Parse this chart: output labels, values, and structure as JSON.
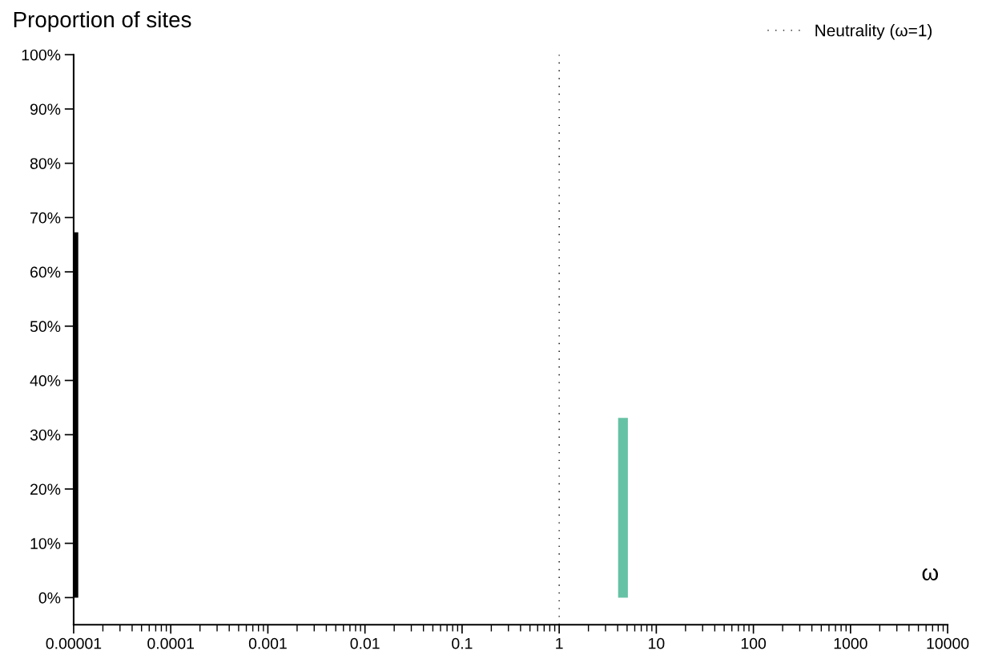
{
  "chart_data": {
    "type": "bar",
    "ylabel": "Proportion of sites",
    "xlabel": "ω",
    "x": [
      1e-05,
      4.57
    ],
    "colors": [
      "#000000",
      "#66c2a5"
    ],
    "values": [
      67.3,
      33.1
    ],
    "log": "x",
    "xlim": [
      1e-05,
      10000
    ],
    "xticks": [
      {
        "value": 1e-05,
        "label": "0.00001"
      },
      {
        "value": 0.0001,
        "label": "0.0001"
      },
      {
        "value": 0.001,
        "label": "0.001"
      },
      {
        "value": 0.01,
        "label": "0.01"
      },
      {
        "value": 0.1,
        "label": "0.1"
      },
      1,
      10,
      100,
      1000,
      10000
    ],
    "ylim": [
      -5,
      100
    ],
    "yticks": [
      {
        "value": 0,
        "label": "0%"
      },
      {
        "value": 10,
        "label": "10%"
      },
      {
        "value": 20,
        "label": "20%"
      },
      {
        "value": 30,
        "label": "30%"
      },
      {
        "value": 40,
        "label": "40%"
      },
      {
        "value": 50,
        "label": "50%"
      },
      {
        "value": 60,
        "label": "60%"
      },
      {
        "value": 70,
        "label": "70%"
      },
      {
        "value": 80,
        "label": "80%"
      },
      {
        "value": 90,
        "label": "90%"
      },
      {
        "value": 100,
        "label": "100%"
      }
    ],
    "ref_lines": [
      {
        "axis": "x",
        "value": 1,
        "label": "Neutrality (ω=1)",
        "color": "#000000",
        "line_style": "dotted"
      }
    ],
    "legend": "top right"
  }
}
